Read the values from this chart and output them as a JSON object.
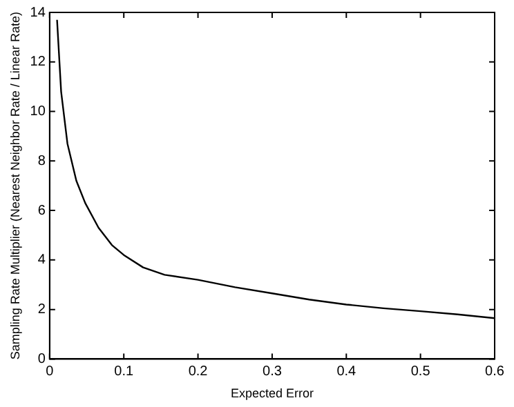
{
  "chart_data": {
    "type": "line",
    "xlabel": "Expected Error",
    "ylabel": "Sampling Rate Multiplier (Nearest Neighbor Rate / Linear Rate)",
    "series": [
      {
        "color": "#000000",
        "x": [
          0.01,
          0.0155,
          0.024,
          0.036,
          0.048,
          0.066,
          0.084,
          0.1,
          0.126,
          0.155,
          0.2,
          0.25,
          0.3,
          0.35,
          0.4,
          0.45,
          0.5,
          0.55,
          0.6
        ],
        "values": [
          13.7,
          10.8,
          8.7,
          7.2,
          6.3,
          5.3,
          4.6,
          4.2,
          3.7,
          3.4,
          3.2,
          2.9,
          2.65,
          2.4,
          2.2,
          2.05,
          1.93,
          1.8,
          1.65
        ]
      }
    ],
    "xlim": [
      0,
      0.6
    ],
    "xticks": [
      0,
      0.1,
      0.2,
      0.3,
      0.4,
      0.5,
      0.6
    ],
    "ylim": [
      0,
      14
    ],
    "yticks": [
      0,
      2,
      4,
      6,
      8,
      10,
      12,
      14
    ],
    "grid": false,
    "legend": false,
    "marker": "none",
    "line_style": "solid"
  }
}
